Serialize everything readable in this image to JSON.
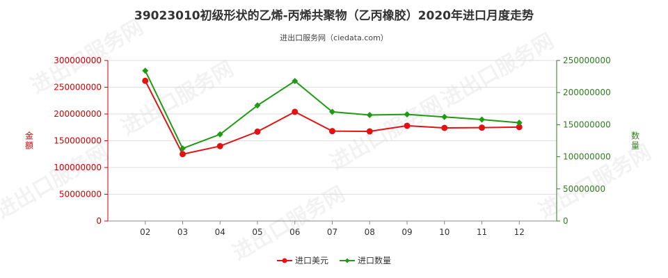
{
  "title": "39023010初级形状的乙烯-丙烯共聚物（乙丙橡胶）2020年进口月度走势",
  "subtitle": "进出口服务网（ciedata.com）",
  "watermark": "进出口服务网",
  "colors": {
    "left_axis": "#cc0000",
    "right_axis": "#2e7d1f",
    "series_value": "#e31212",
    "series_qty": "#1e9b12",
    "grid": "#dddddd"
  },
  "chart_data": {
    "type": "line",
    "categories": [
      "02",
      "03",
      "04",
      "05",
      "06",
      "07",
      "08",
      "09",
      "10",
      "11",
      "12"
    ],
    "y_left": {
      "label": "金额",
      "min": 0,
      "max": 300000000,
      "ticks": [
        0,
        50000000,
        100000000,
        150000000,
        200000000,
        250000000,
        300000000
      ]
    },
    "y_right": {
      "label": "数量",
      "min": 0,
      "max": 250000000,
      "ticks": [
        0,
        50000000,
        100000000,
        150000000,
        200000000,
        250000000
      ]
    },
    "series": [
      {
        "name": "进口美元",
        "axis": "left",
        "color": "#e31212",
        "marker": "circle",
        "values": [
          262000000,
          125000000,
          140000000,
          167000000,
          204000000,
          168000000,
          167500000,
          178000000,
          174000000,
          174500000,
          175500000
        ]
      },
      {
        "name": "进口数量",
        "axis": "right",
        "color": "#1e9b12",
        "marker": "diamond",
        "values": [
          234000000,
          113000000,
          135000000,
          180000000,
          218000000,
          170000000,
          165000000,
          166000000,
          162000000,
          158000000,
          153000000
        ]
      }
    ],
    "grid": true,
    "legend_position": "bottom"
  }
}
